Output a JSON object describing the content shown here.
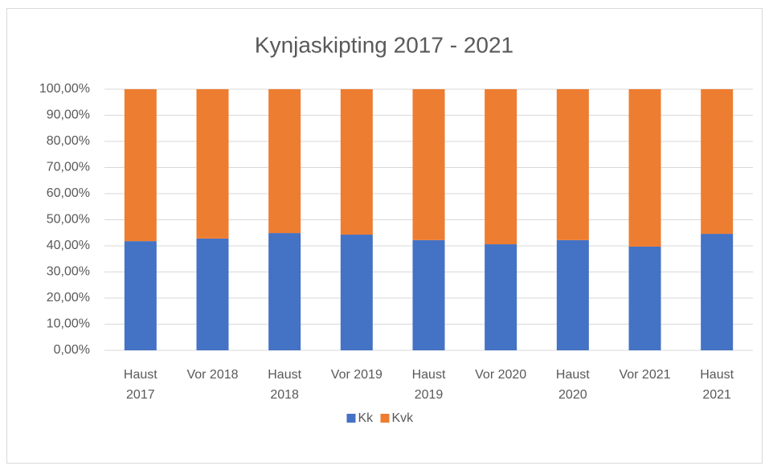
{
  "chart_data": {
    "type": "bar",
    "stacked": true,
    "title": "Kynjaskipting 2017 - 2021",
    "categories": [
      "Haust 2017",
      "Vor 2018",
      "Haust 2018",
      "Vor 2019",
      "Haust 2019",
      "Vor 2020",
      "Haust 2020",
      "Vor 2021",
      "Haust 2021"
    ],
    "series": [
      {
        "name": "Kk",
        "color": "#4472c4",
        "values": [
          41.8,
          42.8,
          44.9,
          44.3,
          42.2,
          40.6,
          42.2,
          39.7,
          44.6
        ]
      },
      {
        "name": "Kvk",
        "color": "#ed7d31",
        "values": [
          58.2,
          57.2,
          55.1,
          55.7,
          57.8,
          59.4,
          57.8,
          60.3,
          55.4
        ]
      }
    ],
    "ylim": [
      0,
      100
    ],
    "yticks": [
      {
        "value": 0,
        "label": "0,00%"
      },
      {
        "value": 10,
        "label": "10,00%"
      },
      {
        "value": 20,
        "label": "20,00%"
      },
      {
        "value": 30,
        "label": "30,00%"
      },
      {
        "value": 40,
        "label": "40,00%"
      },
      {
        "value": 50,
        "label": "50,00%"
      },
      {
        "value": 60,
        "label": "60,00%"
      },
      {
        "value": 70,
        "label": "70,00%"
      },
      {
        "value": 80,
        "label": "80,00%"
      },
      {
        "value": 90,
        "label": "90,00%"
      },
      {
        "value": 100,
        "label": "100,00%"
      }
    ],
    "grid": true,
    "legend": "bottom"
  }
}
